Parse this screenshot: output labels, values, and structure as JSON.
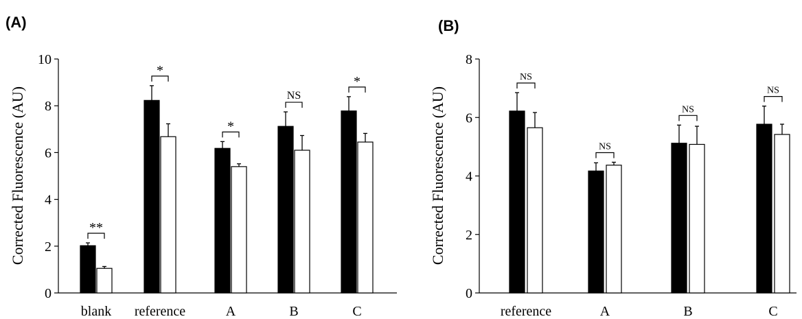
{
  "chart_data": [
    {
      "type": "bar",
      "panel_label": "(A)",
      "ylabel": "Corrected Fluorescence (AU)",
      "ylim": [
        0,
        10
      ],
      "yticks": [
        "0",
        "2",
        "4",
        "6",
        "8",
        "10"
      ],
      "categories": [
        "blank",
        "reference",
        "A",
        "B",
        "C"
      ],
      "series": [
        {
          "fill": "#000000",
          "values": [
            2.02,
            8.23,
            6.18,
            7.12,
            7.78
          ],
          "errors": [
            0.12,
            0.63,
            0.29,
            0.62,
            0.61
          ]
        },
        {
          "fill": "#ffffff",
          "values": [
            1.05,
            6.68,
            5.4,
            6.1,
            6.45
          ],
          "errors": [
            0.08,
            0.55,
            0.12,
            0.63,
            0.37
          ]
        }
      ],
      "significance": [
        "**",
        "*",
        "*",
        "NS",
        "*"
      ],
      "grid": false
    },
    {
      "type": "bar",
      "panel_label": "(B)",
      "ylabel": "Corrected Fluorescence (AU)",
      "ylim": [
        0,
        8
      ],
      "yticks": [
        "0",
        "2",
        "4",
        "6",
        "8"
      ],
      "categories": [
        "reference",
        "A",
        "B",
        "C"
      ],
      "series": [
        {
          "fill": "#000000",
          "values": [
            6.22,
            4.17,
            5.12,
            5.77
          ],
          "errors": [
            0.63,
            0.28,
            0.62,
            0.62
          ]
        },
        {
          "fill": "#ffffff",
          "values": [
            5.65,
            4.37,
            5.08,
            5.42
          ],
          "errors": [
            0.52,
            0.1,
            0.62,
            0.35
          ]
        }
      ],
      "significance": [
        "NS",
        "NS",
        "NS",
        "NS"
      ],
      "grid": false
    }
  ]
}
